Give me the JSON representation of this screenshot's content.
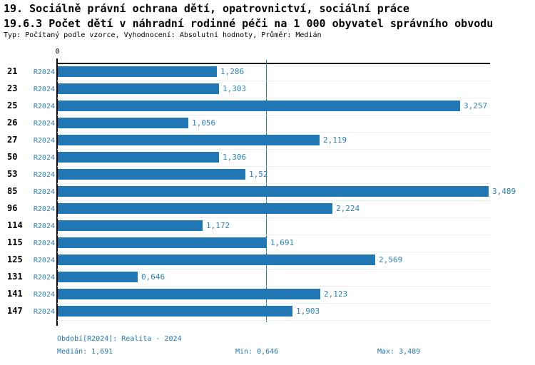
{
  "header": {
    "title1": "19. Sociálně právní ochrana dětí, opatrovnictví, sociální práce",
    "title2": "19.6.3 Počet dětí v náhradní rodinné péči na 1 000 obyvatel správního obvodu",
    "meta": "Typ: Počítaný podle vzorce, Vyhodnocení: Absolutní hodnoty, Průměr: Medián"
  },
  "chart_data": {
    "type": "bar",
    "orientation": "horizontal",
    "title": "19.6.3 Počet dětí v náhradní rodinné péči na 1 000 obyvatel správního obvodu",
    "categories": [
      "21",
      "23",
      "25",
      "26",
      "27",
      "50",
      "53",
      "85",
      "96",
      "114",
      "115",
      "125",
      "131",
      "141",
      "147"
    ],
    "series_label": "R2024",
    "values": [
      1.286,
      1.303,
      3.257,
      1.056,
      2.119,
      1.306,
      1.52,
      3.489,
      2.224,
      1.172,
      1.691,
      2.569,
      0.646,
      2.123,
      1.903
    ],
    "value_labels": [
      "1,286",
      "1,303",
      "3,257",
      "1,056",
      "2,119",
      "1,306",
      "1,52",
      "3,489",
      "2,224",
      "1,172",
      "1,691",
      "2,569",
      "0,646",
      "2,123",
      "1,903"
    ],
    "xlim": [
      0,
      3.5
    ],
    "zero_tick_label": "0",
    "median_value": 1.691,
    "min_value": 0.646,
    "max_value": 3.489,
    "grid": "light horizontal row separators",
    "legend": "none",
    "bar_color": "#2077b4",
    "median_line_color": "#2077b4"
  },
  "footer": {
    "period": "Období[R2024]: Realita - 2024",
    "median": "Medián: 1,691",
    "min": "Min: 0,646",
    "max": "Max: 3,489"
  }
}
